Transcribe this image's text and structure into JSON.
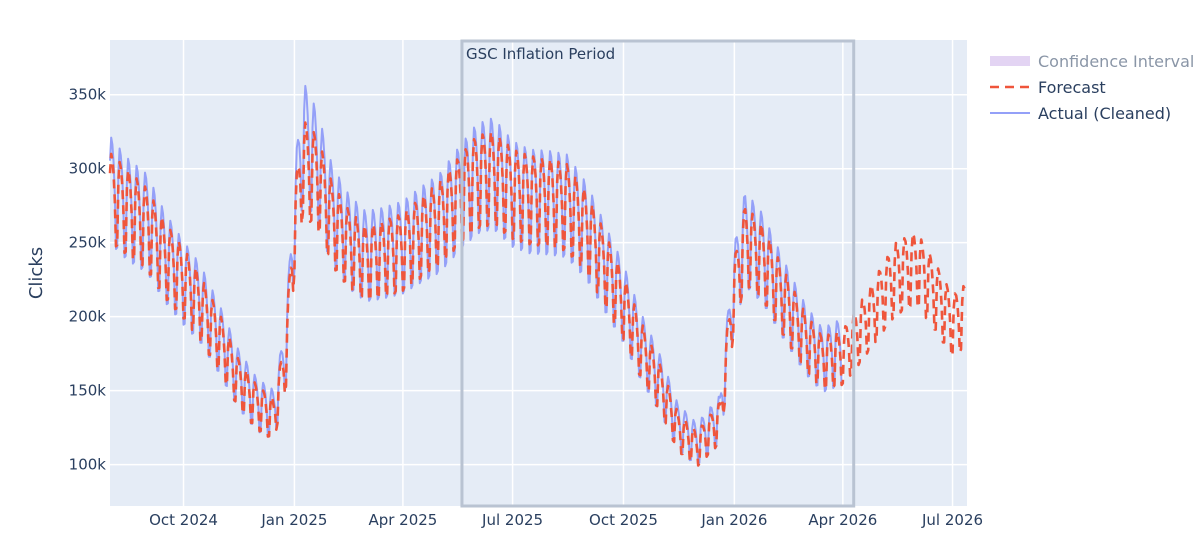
{
  "chart_data": {
    "type": "line",
    "ylabel": "Clicks",
    "xlabel": "",
    "x_range": [
      "2024-08-01",
      "2026-07-13"
    ],
    "y_range": [
      72000,
      387000
    ],
    "x_ticks": [
      {
        "date": "2024-10-01",
        "label": "Oct 2024"
      },
      {
        "date": "2025-01-01",
        "label": "Jan 2025"
      },
      {
        "date": "2025-04-01",
        "label": "Apr 2025"
      },
      {
        "date": "2025-07-01",
        "label": "Jul 2025"
      },
      {
        "date": "2025-10-01",
        "label": "Oct 2025"
      },
      {
        "date": "2026-01-01",
        "label": "Jan 2026"
      },
      {
        "date": "2026-04-01",
        "label": "Apr 2026"
      },
      {
        "date": "2026-07-01",
        "label": "Jul 2026"
      }
    ],
    "y_ticks": [
      {
        "value": 100000,
        "label": "100k"
      },
      {
        "value": 150000,
        "label": "150k"
      },
      {
        "value": 200000,
        "label": "200k"
      },
      {
        "value": 250000,
        "label": "250k"
      },
      {
        "value": 300000,
        "label": "300k"
      },
      {
        "value": 350000,
        "label": "350k"
      }
    ],
    "grid": true,
    "legend_position": "right",
    "annotation": {
      "text": "GSC Inflation Period",
      "x_start": "2025-05-20",
      "x_end": "2026-04-10"
    },
    "series": [
      {
        "name": "Confidence Interval",
        "kind": "band",
        "color": "#d9c6ef",
        "points": []
      },
      {
        "name": "Forecast",
        "kind": "dashed-line",
        "color": "#ef553b",
        "points": [
          [
            "2024-08-01",
            280000
          ],
          [
            "2024-08-15",
            270000
          ],
          [
            "2024-09-01",
            258000
          ],
          [
            "2024-09-15",
            238000
          ],
          [
            "2024-10-01",
            222000
          ],
          [
            "2024-10-15",
            205000
          ],
          [
            "2024-11-01",
            180000
          ],
          [
            "2024-11-15",
            155000
          ],
          [
            "2024-12-01",
            138000
          ],
          [
            "2024-12-15",
            130000
          ],
          [
            "2024-12-25",
            170000
          ],
          [
            "2025-01-01",
            255000
          ],
          [
            "2025-01-08",
            300000
          ],
          [
            "2025-01-20",
            290000
          ],
          [
            "2025-02-01",
            262000
          ],
          [
            "2025-02-15",
            245000
          ],
          [
            "2025-03-01",
            235000
          ],
          [
            "2025-03-15",
            238000
          ],
          [
            "2025-04-01",
            243000
          ],
          [
            "2025-04-15",
            252000
          ],
          [
            "2025-05-01",
            262000
          ],
          [
            "2025-05-15",
            275000
          ],
          [
            "2025-06-01",
            290000
          ],
          [
            "2025-06-15",
            293000
          ],
          [
            "2025-07-01",
            282000
          ],
          [
            "2025-07-15",
            278000
          ],
          [
            "2025-08-01",
            276000
          ],
          [
            "2025-08-15",
            273000
          ],
          [
            "2025-09-01",
            255000
          ],
          [
            "2025-09-15",
            232000
          ],
          [
            "2025-10-01",
            205000
          ],
          [
            "2025-10-15",
            178000
          ],
          [
            "2025-11-01",
            150000
          ],
          [
            "2025-11-15",
            122000
          ],
          [
            "2025-12-01",
            110000
          ],
          [
            "2025-12-20",
            128000
          ],
          [
            "2026-01-01",
            215000
          ],
          [
            "2026-01-10",
            248000
          ],
          [
            "2026-01-25",
            235000
          ],
          [
            "2026-02-10",
            210000
          ],
          [
            "2026-03-01",
            182000
          ],
          [
            "2026-03-15",
            168000
          ],
          [
            "2026-04-01",
            172000
          ],
          [
            "2026-04-15",
            188000
          ],
          [
            "2026-05-01",
            208000
          ],
          [
            "2026-05-15",
            225000
          ],
          [
            "2026-06-01",
            232000
          ],
          [
            "2026-06-15",
            215000
          ],
          [
            "2026-07-01",
            193000
          ],
          [
            "2026-07-12",
            200000
          ]
        ]
      },
      {
        "name": "Actual (Cleaned)",
        "kind": "line",
        "color": "#94a0f8",
        "points": [
          [
            "2024-08-01",
            285000
          ],
          [
            "2024-08-15",
            272000
          ],
          [
            "2024-09-01",
            262000
          ],
          [
            "2024-09-15",
            240000
          ],
          [
            "2024-10-01",
            222000
          ],
          [
            "2024-10-15",
            208000
          ],
          [
            "2024-11-01",
            182000
          ],
          [
            "2024-11-15",
            158000
          ],
          [
            "2024-12-01",
            140000
          ],
          [
            "2024-12-15",
            133000
          ],
          [
            "2024-12-25",
            175000
          ],
          [
            "2025-01-01",
            262000
          ],
          [
            "2025-01-08",
            318000
          ],
          [
            "2025-01-20",
            300000
          ],
          [
            "2025-02-01",
            268000
          ],
          [
            "2025-02-15",
            250000
          ],
          [
            "2025-03-01",
            240000
          ],
          [
            "2025-03-15",
            242000
          ],
          [
            "2025-04-01",
            246000
          ],
          [
            "2025-04-15",
            254000
          ],
          [
            "2025-05-01",
            262000
          ],
          [
            "2025-05-15",
            276000
          ],
          [
            "2025-06-01",
            292000
          ],
          [
            "2025-06-15",
            296000
          ],
          [
            "2025-07-01",
            282000
          ],
          [
            "2025-07-15",
            277000
          ],
          [
            "2025-08-01",
            276000
          ],
          [
            "2025-08-15",
            274000
          ],
          [
            "2025-09-01",
            256000
          ],
          [
            "2025-09-15",
            233000
          ],
          [
            "2025-10-01",
            208000
          ],
          [
            "2025-10-15",
            180000
          ],
          [
            "2025-11-01",
            153000
          ],
          [
            "2025-11-15",
            125000
          ],
          [
            "2025-12-01",
            113000
          ],
          [
            "2025-12-20",
            130000
          ],
          [
            "2026-01-01",
            220000
          ],
          [
            "2026-01-10",
            252000
          ],
          [
            "2026-01-25",
            238000
          ],
          [
            "2026-02-10",
            212000
          ],
          [
            "2026-03-01",
            184000
          ],
          [
            "2026-03-15",
            170000
          ],
          [
            "2026-04-01",
            176000
          ]
        ]
      }
    ]
  }
}
